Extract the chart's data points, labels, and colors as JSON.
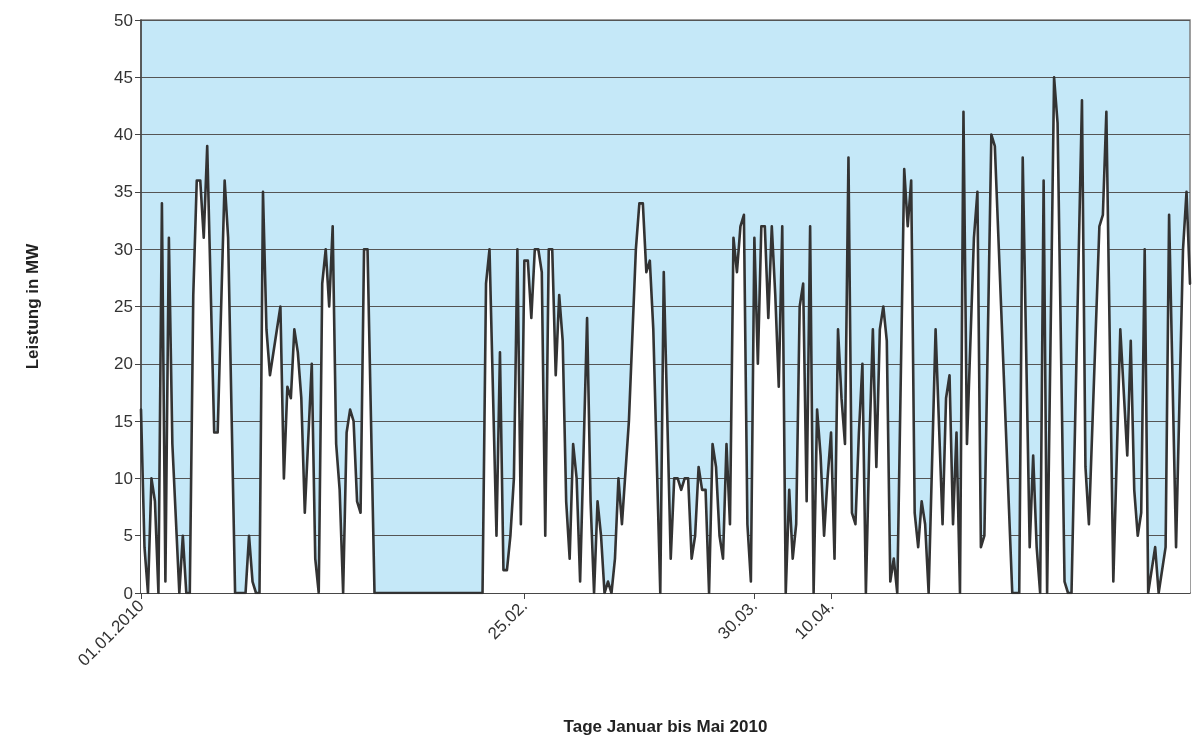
{
  "chart_data": {
    "type": "area",
    "xlabel": "Tage Januar bis Mai 2010",
    "ylabel": "Leistung in MW",
    "xlim": [
      "2010-01-01",
      "2010-05-31T12:00"
    ],
    "xticks": [
      {
        "value": "2010-01-01",
        "label": "01.01.2010"
      },
      {
        "value": "2010-02-25",
        "label": "25.02."
      },
      {
        "value": "2010-03-30",
        "label": "30.03."
      },
      {
        "value": "2010-04-10",
        "label": "10.04."
      }
    ],
    "ylim": [
      0,
      50
    ],
    "yticks": [
      0,
      5,
      10,
      15,
      20,
      25,
      30,
      35,
      40,
      45,
      50
    ],
    "grid": "y",
    "marker": "none",
    "line_style": "solid",
    "series": [
      {
        "color": "#333333",
        "x": [
          "2010-01-01",
          "2010-01-01T12:00",
          "2010-01-02",
          "2010-01-02T12:00",
          "2010-01-03",
          "2010-01-03T12:00",
          "2010-01-04",
          "2010-01-04T12:00",
          "2010-01-05",
          "2010-01-05T12:00",
          "2010-01-06T12:00",
          "2010-01-07",
          "2010-01-07T12:00",
          "2010-01-08",
          "2010-01-08T12:00",
          "2010-01-09",
          "2010-01-09T12:00",
          "2010-01-10",
          "2010-01-10T12:00",
          "2010-01-11T12:00",
          "2010-01-12",
          "2010-01-13",
          "2010-01-13T12:00",
          "2010-01-14T12:00",
          "2010-01-16",
          "2010-01-16T12:00",
          "2010-01-17",
          "2010-01-17T12:00",
          "2010-01-18",
          "2010-01-18T12:00",
          "2010-01-19",
          "2010-01-19T12:00",
          "2010-01-21",
          "2010-01-21T12:00",
          "2010-01-22",
          "2010-01-22T12:00",
          "2010-01-23",
          "2010-01-23T12:00",
          "2010-01-24",
          "2010-01-24T12:00",
          "2010-01-25T12:00",
          "2010-01-26",
          "2010-01-26T12:00",
          "2010-01-27",
          "2010-01-27T12:00",
          "2010-01-28",
          "2010-01-28T12:00",
          "2010-01-29",
          "2010-01-29T12:00",
          "2010-01-30",
          "2010-01-30T12:00",
          "2010-01-31",
          "2010-01-31T12:00",
          "2010-02-01",
          "2010-02-01T12:00",
          "2010-02-02",
          "2010-02-02T12:00",
          "2010-02-03T12:00",
          "2010-02-19",
          "2010-02-19T12:00",
          "2010-02-20",
          "2010-02-21",
          "2010-02-21T12:00",
          "2010-02-22",
          "2010-02-22T12:00",
          "2010-02-23",
          "2010-02-23T12:00",
          "2010-02-24",
          "2010-02-24T12:00",
          "2010-02-25",
          "2010-02-25T12:00",
          "2010-02-26",
          "2010-02-26T12:00",
          "2010-02-27",
          "2010-02-27T12:00",
          "2010-02-28",
          "2010-02-28T12:00",
          "2010-03-01",
          "2010-03-01T12:00",
          "2010-03-02",
          "2010-03-02T12:00",
          "2010-03-03",
          "2010-03-03T12:00",
          "2010-03-04",
          "2010-03-04T12:00",
          "2010-03-05",
          "2010-03-06",
          "2010-03-06T12:00",
          "2010-03-07",
          "2010-03-07T12:00",
          "2010-03-08",
          "2010-03-08T12:00",
          "2010-03-09",
          "2010-03-09T12:00",
          "2010-03-10",
          "2010-03-10T12:00",
          "2010-03-11",
          "2010-03-12",
          "2010-03-13",
          "2010-03-13T12:00",
          "2010-03-14",
          "2010-03-14T12:00",
          "2010-03-15",
          "2010-03-15T12:00",
          "2010-03-16T12:00",
          "2010-03-17",
          "2010-03-18",
          "2010-03-18T12:00",
          "2010-03-19",
          "2010-03-19T12:00",
          "2010-03-20",
          "2010-03-20T12:00",
          "2010-03-21",
          "2010-03-21T12:00",
          "2010-03-22",
          "2010-03-22T12:00",
          "2010-03-23",
          "2010-03-23T12:00",
          "2010-03-24",
          "2010-03-24T12:00",
          "2010-03-25",
          "2010-03-25T12:00",
          "2010-03-26",
          "2010-03-26T12:00",
          "2010-03-27",
          "2010-03-27T12:00",
          "2010-03-28",
          "2010-03-28T12:00",
          "2010-03-29",
          "2010-03-29T12:00",
          "2010-03-30",
          "2010-03-30T12:00",
          "2010-03-31",
          "2010-03-31T12:00",
          "2010-04-01",
          "2010-04-01T12:00",
          "2010-04-02",
          "2010-04-02T12:00",
          "2010-04-03",
          "2010-04-03T12:00",
          "2010-04-04",
          "2010-04-04T12:00",
          "2010-04-05",
          "2010-04-05T12:00",
          "2010-04-06",
          "2010-04-06T12:00",
          "2010-04-07",
          "2010-04-07T12:00",
          "2010-04-08",
          "2010-04-08T12:00",
          "2010-04-09",
          "2010-04-09T12:00",
          "2010-04-10",
          "2010-04-10T12:00",
          "2010-04-11",
          "2010-04-11T12:00",
          "2010-04-12",
          "2010-04-12T12:00",
          "2010-04-13",
          "2010-04-13T12:00",
          "2010-04-14",
          "2010-04-14T12:00",
          "2010-04-15",
          "2010-04-15T12:00",
          "2010-04-16",
          "2010-04-16T12:00",
          "2010-04-17",
          "2010-04-17T12:00",
          "2010-04-18",
          "2010-04-18T12:00",
          "2010-04-19",
          "2010-04-19T12:00",
          "2010-04-20T12:00",
          "2010-04-21",
          "2010-04-21T12:00",
          "2010-04-22",
          "2010-04-22T12:00",
          "2010-04-23",
          "2010-04-23T12:00",
          "2010-04-24",
          "2010-04-25",
          "2010-04-26",
          "2010-04-26T12:00",
          "2010-04-27",
          "2010-04-27T12:00",
          "2010-04-28",
          "2010-04-28T12:00",
          "2010-04-29",
          "2010-04-29T12:00",
          "2010-04-30T12:00",
          "2010-05-01",
          "2010-05-01T12:00",
          "2010-05-02",
          "2010-05-03",
          "2010-05-03T12:00",
          "2010-05-06",
          "2010-05-07",
          "2010-05-07T12:00",
          "2010-05-08T12:00",
          "2010-05-09",
          "2010-05-09T12:00",
          "2010-05-10",
          "2010-05-10T12:00",
          "2010-05-11",
          "2010-05-12",
          "2010-05-12T12:00",
          "2010-05-13T12:00",
          "2010-05-14",
          "2010-05-14T12:00",
          "2010-05-16",
          "2010-05-16T12:00",
          "2010-05-17",
          "2010-05-18T12:00",
          "2010-05-19",
          "2010-05-19T12:00",
          "2010-05-20T12:00",
          "2010-05-21T12:00",
          "2010-05-22T12:00",
          "2010-05-23",
          "2010-05-23T12:00",
          "2010-05-24",
          "2010-05-24T12:00",
          "2010-05-25",
          "2010-05-25T12:00",
          "2010-05-26T12:00",
          "2010-05-27",
          "2010-05-28",
          "2010-05-28T12:00",
          "2010-05-29T12:00",
          "2010-05-30T12:00",
          "2010-05-31",
          "2010-05-31T12:00"
        ],
        "values": [
          16,
          4,
          0,
          10,
          8,
          0,
          34,
          1,
          31,
          13,
          0,
          5,
          0,
          0,
          26,
          36,
          36,
          31,
          39,
          14,
          14,
          36,
          31,
          0,
          0,
          5,
          1,
          0,
          0,
          35,
          23,
          19,
          25,
          10,
          18,
          17,
          23,
          21,
          17,
          7,
          20,
          3,
          0,
          27,
          30,
          25,
          32,
          13,
          9,
          0,
          14,
          16,
          15,
          8,
          7,
          30,
          30,
          0,
          0,
          27,
          30,
          5,
          21,
          2,
          2,
          5,
          10,
          30,
          6,
          29,
          29,
          24,
          30,
          30,
          28,
          5,
          30,
          30,
          19,
          26,
          22,
          8,
          3,
          13,
          10,
          1,
          24,
          8,
          0,
          8,
          5,
          0,
          1,
          0,
          3,
          10,
          6,
          15,
          30,
          34,
          34,
          28,
          29,
          23,
          0,
          28,
          3,
          10,
          10,
          9,
          10,
          10,
          3,
          5,
          11,
          9,
          9,
          0,
          13,
          11,
          5,
          3,
          13,
          6,
          31,
          28,
          32,
          33,
          6,
          1,
          31,
          20,
          32,
          32,
          24,
          32,
          26,
          18,
          32,
          0,
          9,
          3,
          6,
          25,
          27,
          8,
          32,
          0,
          16,
          12,
          5,
          10,
          14,
          3,
          23,
          17,
          13,
          38,
          7,
          6,
          14,
          20,
          0,
          13,
          23,
          11,
          23,
          25,
          22,
          1,
          3,
          0,
          37,
          32,
          36,
          7,
          4,
          8,
          6,
          0,
          23,
          6,
          17,
          19,
          6,
          14,
          0,
          42,
          13,
          31,
          35,
          4,
          5,
          40,
          39,
          0,
          0,
          38,
          4,
          12,
          4,
          0,
          36,
          0,
          45,
          41,
          1,
          0,
          0,
          43,
          11,
          6,
          32,
          33,
          42,
          1,
          23,
          12,
          22,
          9,
          5,
          7,
          30,
          0,
          4,
          0,
          4,
          33,
          4,
          30,
          35,
          27
        ]
      }
    ]
  }
}
